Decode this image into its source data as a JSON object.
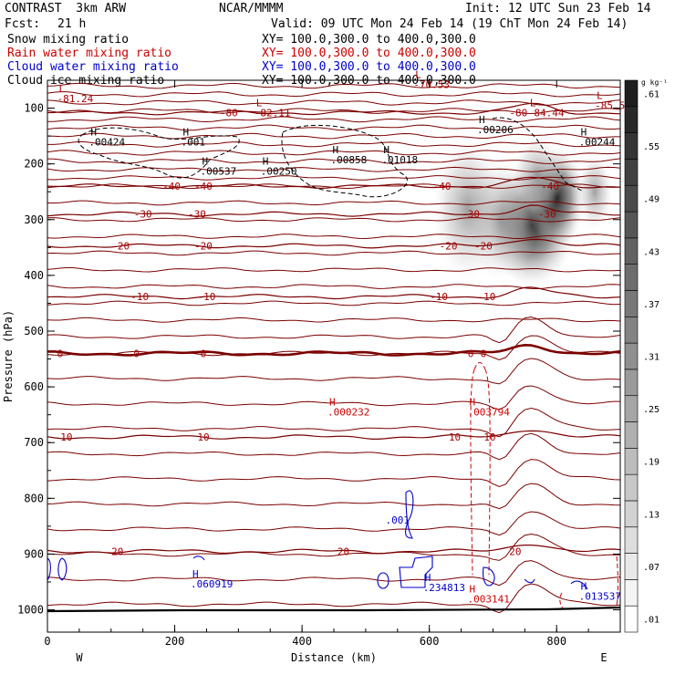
{
  "header": {
    "model": "CONTRAST  3km ARW",
    "center": "NCAR/MMMM",
    "init": "Init: 12 UTC Sun 23 Feb 14",
    "fcst_label": "Fcst:",
    "fcst_value": "21 h",
    "valid": "Valid: 09 UTC Mon 24 Feb 14 (19 ChT Mon 24 Feb 14)",
    "fields": [
      {
        "name": "Snow mixing ratio",
        "xy": "XY= 100.0,300.0 to 400.0,300.0",
        "color": "#000000"
      },
      {
        "name": "Rain water mixing ratio",
        "xy": "XY= 100.0,300.0 to 400.0,300.0",
        "color": "#cc0000"
      },
      {
        "name": "Cloud water mixing ratio",
        "xy": "XY= 100.0,300.0 to 400.0,300.0",
        "color": "#0000cc"
      },
      {
        "name": "Cloud ice mixing ratio",
        "xy": "XY= 100.0,300.0 to 400.0,300.0",
        "color": "#000000"
      }
    ]
  },
  "colors": {
    "temperature": "#7a0000",
    "rain": "#cc0000",
    "cloud_water": "#0000cc",
    "ice": "#000000",
    "snow_shade": "#000000"
  },
  "chart_data": {
    "type": "contour-cross-section",
    "xlabel": "Distance (km)",
    "ylabel": "Pressure (hPa)",
    "xlim": [
      0,
      900
    ],
    "ylim": [
      1040,
      50
    ],
    "xticks": [
      0,
      200,
      400,
      600,
      800
    ],
    "yticks": [
      100,
      200,
      300,
      400,
      500,
      600,
      700,
      800,
      900,
      1000
    ],
    "end_labels": {
      "left": "W",
      "right": "E"
    },
    "colorbar": {
      "unit": "g kg⁻¹",
      "labels": [
        ".61",
        ".55",
        ".49",
        ".43",
        ".37",
        ".31",
        ".25",
        ".19",
        ".13",
        ".07",
        ".01"
      ],
      "levels": [
        0.01,
        0.04,
        0.07,
        0.1,
        0.13,
        0.16,
        0.19,
        0.22,
        0.25,
        0.28,
        0.31,
        0.34,
        0.37,
        0.4,
        0.43,
        0.46,
        0.49,
        0.52,
        0.55,
        0.58,
        0.61,
        0.64
      ]
    },
    "temperature_contours": [
      {
        "label": "-80",
        "p": 108,
        "labels_at": [
          285,
          740
        ]
      },
      {
        "label": "-40",
        "p": 240,
        "labels_at": [
          195,
          245,
          620,
          790
        ]
      },
      {
        "label": "-30",
        "p": 290,
        "labels_at": [
          150,
          235,
          665,
          785
        ]
      },
      {
        "label": "-20",
        "p": 347,
        "labels_at": [
          115,
          245,
          630,
          685
        ]
      },
      {
        "label": "-10",
        "p": 438,
        "labels_at": [
          145,
          250,
          615,
          690
        ]
      },
      {
        "label": "0",
        "p": 540,
        "labels_at": [
          20,
          140,
          245,
          665,
          685
        ]
      },
      {
        "label": "10",
        "p": 690,
        "labels_at": [
          30,
          245,
          640,
          695
        ]
      },
      {
        "label": "20",
        "p": 895,
        "labels_at": [
          110,
          465,
          735
        ]
      }
    ],
    "annotations": [
      {
        "kind": "L",
        "text": "-81.24",
        "x": 15,
        "p": 88,
        "field": "temperature"
      },
      {
        "kind": "L",
        "text": "-70.53",
        "x": 575,
        "p": 62,
        "field": "temperature"
      },
      {
        "kind": "L",
        "text": "-82.11",
        "x": 325,
        "p": 113,
        "field": "temperature"
      },
      {
        "kind": "L",
        "text": "-84.44",
        "x": 755,
        "p": 113,
        "field": "temperature"
      },
      {
        "kind": "L",
        "text": "-85.5",
        "x": 860,
        "p": 100,
        "field": "temperature"
      },
      {
        "kind": "H",
        "text": ".00424",
        "x": 65,
        "p": 165,
        "field": "ice"
      },
      {
        "kind": "H",
        "text": ".001",
        "x": 210,
        "p": 165,
        "field": "ice"
      },
      {
        "kind": "H",
        "text": ".00537",
        "x": 240,
        "p": 218,
        "field": "ice"
      },
      {
        "kind": "H",
        "text": ".00250",
        "x": 335,
        "p": 218,
        "field": "ice"
      },
      {
        "kind": "H",
        "text": ".00858",
        "x": 445,
        "p": 197,
        "field": "ice"
      },
      {
        "kind": "H",
        "text": ".01018",
        "x": 525,
        "p": 197,
        "field": "ice"
      },
      {
        "kind": "H",
        "text": ".00206",
        "x": 675,
        "p": 143,
        "field": "ice"
      },
      {
        "kind": "H",
        "text": ".00244",
        "x": 835,
        "p": 165,
        "field": "ice"
      },
      {
        "kind": "H",
        "text": ".000232",
        "x": 440,
        "p": 650,
        "field": "rain"
      },
      {
        "kind": "H",
        "text": ".003794",
        "x": 660,
        "p": 650,
        "field": "rain"
      },
      {
        "kind": "H",
        "text": ".003141",
        "x": 660,
        "p": 985,
        "field": "rain"
      },
      {
        "kind": "H",
        "text": ".060919",
        "x": 225,
        "p": 958,
        "field": "cloud_water"
      },
      {
        "kind": "H",
        "text": ".234813",
        "x": 590,
        "p": 965,
        "field": "cloud_water"
      },
      {
        "kind": "H",
        "text": ".013537",
        "x": 835,
        "p": 980,
        "field": "cloud_water"
      },
      {
        "kind": "label",
        "text": ".001",
        "x": 550,
        "p": 845,
        "field": "cloud_water"
      }
    ]
  }
}
